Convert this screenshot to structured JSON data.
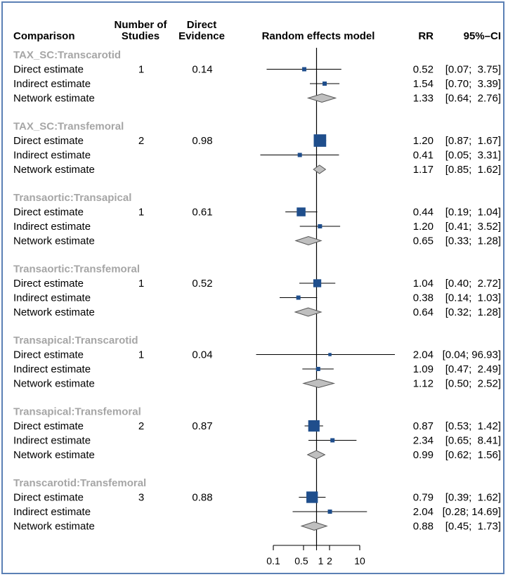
{
  "headers": {
    "comparison": "Comparison",
    "studies_line1": "Number of",
    "studies_line2": "Studies",
    "evidence_line1": "Direct",
    "evidence_line2": "Evidence",
    "model": "Random effects model",
    "rr": "RR",
    "ci": "95%–CI"
  },
  "colors": {
    "frame": "#5b80b5",
    "square": "#1f4e8c",
    "diamond_fill": "#bfbfbf",
    "group_label": "#a6a6a6"
  },
  "chart_data": {
    "type": "forest",
    "scale": "log",
    "reference_line": 1,
    "xlim": [
      0.1,
      10
    ],
    "x_ticks": [
      0.1,
      0.5,
      1,
      2,
      10
    ],
    "x_tick_labels": [
      "0.1",
      "0.5",
      "1",
      "2",
      "10"
    ],
    "groups": [
      {
        "name": "TAX_SC:Transcarotid",
        "rows": [
          {
            "label": "Direct estimate",
            "studies": "1",
            "evidence": "0.14",
            "rr": 0.52,
            "lo": 0.07,
            "hi": 3.75,
            "kind": "square",
            "rr_text": "0.52",
            "ci_text": "[0.07;  3.75]"
          },
          {
            "label": "Indirect estimate",
            "rr": 1.54,
            "lo": 0.7,
            "hi": 3.39,
            "kind": "square",
            "rr_text": "1.54",
            "ci_text": "[0.70;  3.39]"
          },
          {
            "label": "Network estimate",
            "rr": 1.33,
            "lo": 0.64,
            "hi": 2.76,
            "kind": "diamond",
            "rr_text": "1.33",
            "ci_text": "[0.64;  2.76]"
          }
        ]
      },
      {
        "name": "TAX_SC:Transfemoral",
        "rows": [
          {
            "label": "Direct estimate",
            "studies": "2",
            "evidence": "0.98",
            "rr": 1.2,
            "lo": 0.87,
            "hi": 1.67,
            "kind": "square",
            "rr_text": "1.20",
            "ci_text": "[0.87;  1.67]"
          },
          {
            "label": "Indirect estimate",
            "rr": 0.41,
            "lo": 0.05,
            "hi": 3.31,
            "kind": "square",
            "rr_text": "0.41",
            "ci_text": "[0.05;  3.31]"
          },
          {
            "label": "Network estimate",
            "rr": 1.17,
            "lo": 0.85,
            "hi": 1.62,
            "kind": "diamond",
            "rr_text": "1.17",
            "ci_text": "[0.85;  1.62]"
          }
        ]
      },
      {
        "name": "Transaortic:Transapical",
        "rows": [
          {
            "label": "Direct estimate",
            "studies": "1",
            "evidence": "0.61",
            "rr": 0.44,
            "lo": 0.19,
            "hi": 1.04,
            "kind": "square",
            "rr_text": "0.44",
            "ci_text": "[0.19;  1.04]"
          },
          {
            "label": "Indirect estimate",
            "rr": 1.2,
            "lo": 0.41,
            "hi": 3.52,
            "kind": "square",
            "rr_text": "1.20",
            "ci_text": "[0.41;  3.52]"
          },
          {
            "label": "Network estimate",
            "rr": 0.65,
            "lo": 0.33,
            "hi": 1.28,
            "kind": "diamond",
            "rr_text": "0.65",
            "ci_text": "[0.33;  1.28]"
          }
        ]
      },
      {
        "name": "Transaortic:Transfemoral",
        "rows": [
          {
            "label": "Direct estimate",
            "studies": "1",
            "evidence": "0.52",
            "rr": 1.04,
            "lo": 0.4,
            "hi": 2.72,
            "kind": "square",
            "rr_text": "1.04",
            "ci_text": "[0.40;  2.72]"
          },
          {
            "label": "Indirect estimate",
            "rr": 0.38,
            "lo": 0.14,
            "hi": 1.03,
            "kind": "square",
            "rr_text": "0.38",
            "ci_text": "[0.14;  1.03]"
          },
          {
            "label": "Network estimate",
            "rr": 0.64,
            "lo": 0.32,
            "hi": 1.28,
            "kind": "diamond",
            "rr_text": "0.64",
            "ci_text": "[0.32;  1.28]"
          }
        ]
      },
      {
        "name": "Transapical:Transcarotid",
        "rows": [
          {
            "label": "Direct estimate",
            "studies": "1",
            "evidence": "0.04",
            "rr": 2.04,
            "lo": 0.04,
            "hi": 96.93,
            "kind": "square",
            "rr_text": "2.04",
            "ci_text": "[0.04; 96.93]"
          },
          {
            "label": "Indirect estimate",
            "rr": 1.09,
            "lo": 0.47,
            "hi": 2.49,
            "kind": "square",
            "rr_text": "1.09",
            "ci_text": "[0.47;  2.49]"
          },
          {
            "label": "Network estimate",
            "rr": 1.12,
            "lo": 0.5,
            "hi": 2.52,
            "kind": "diamond",
            "rr_text": "1.12",
            "ci_text": "[0.50;  2.52]"
          }
        ]
      },
      {
        "name": "Transapical:Transfemoral",
        "rows": [
          {
            "label": "Direct estimate",
            "studies": "2",
            "evidence": "0.87",
            "rr": 0.87,
            "lo": 0.53,
            "hi": 1.42,
            "kind": "square",
            "rr_text": "0.87",
            "ci_text": "[0.53;  1.42]"
          },
          {
            "label": "Indirect estimate",
            "rr": 2.34,
            "lo": 0.65,
            "hi": 8.41,
            "kind": "square",
            "rr_text": "2.34",
            "ci_text": "[0.65;  8.41]"
          },
          {
            "label": "Network estimate",
            "rr": 0.99,
            "lo": 0.62,
            "hi": 1.56,
            "kind": "diamond",
            "rr_text": "0.99",
            "ci_text": "[0.62;  1.56]"
          }
        ]
      },
      {
        "name": "Transcarotid:Transfemoral",
        "rows": [
          {
            "label": "Direct estimate",
            "studies": "3",
            "evidence": "0.88",
            "rr": 0.79,
            "lo": 0.39,
            "hi": 1.62,
            "kind": "square",
            "rr_text": "0.79",
            "ci_text": "[0.39;  1.62]"
          },
          {
            "label": "Indirect estimate",
            "rr": 2.04,
            "lo": 0.28,
            "hi": 14.69,
            "kind": "square",
            "rr_text": "2.04",
            "ci_text": "[0.28; 14.69]"
          },
          {
            "label": "Network estimate",
            "rr": 0.88,
            "lo": 0.45,
            "hi": 1.73,
            "kind": "diamond",
            "rr_text": "0.88",
            "ci_text": "[0.45;  1.73]"
          }
        ]
      }
    ]
  }
}
